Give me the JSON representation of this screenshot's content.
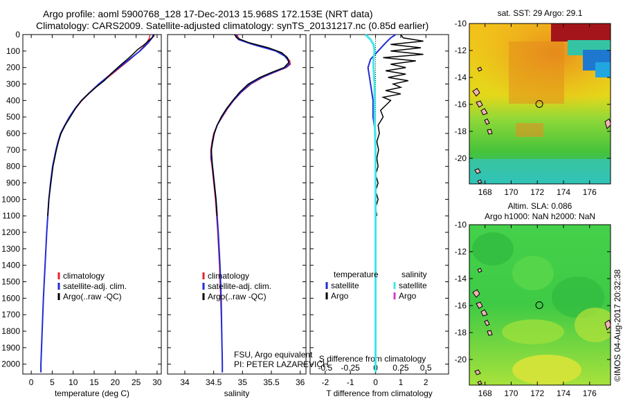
{
  "header": {
    "line1": "Argo profile: aoml 5900768_128 17-Dec-2013 15.968S 172.153E (NRT data)",
    "line2": "Climatology: CARS2009. Satellite-adjusted climatology: synTS_20131217.nc (0.85d earlier)"
  },
  "colors": {
    "climatology": "#e8202a",
    "satellite": "#1f2bd6",
    "argo": "#000000",
    "salinity_satellite": "#3fe6ea",
    "salinity_argo": "#d23cd2"
  },
  "chart_data": [
    {
      "type": "line",
      "xlabel": "temperature (deg C)",
      "xlim": [
        -2,
        31
      ],
      "xticks": [
        0,
        5,
        10,
        15,
        20,
        25,
        30
      ],
      "ylim": [
        2060,
        0
      ],
      "yticks": [
        0,
        100,
        200,
        300,
        400,
        500,
        600,
        700,
        800,
        900,
        1000,
        1100,
        1200,
        1300,
        1400,
        1500,
        1600,
        1700,
        1800,
        1900,
        2000
      ],
      "legend": [
        "climatology",
        "satellite-adj. clim.",
        "Argo(..raw -QC)"
      ],
      "series": [
        {
          "name": "climatology",
          "y": [
            0,
            20,
            50,
            75,
            100,
            150,
            200,
            250,
            300,
            350,
            400,
            450,
            500,
            550,
            600,
            650,
            700,
            800,
            900,
            1000,
            1200,
            1400,
            1600,
            1800,
            2000,
            2050
          ],
          "values": [
            28.3,
            28.2,
            27.5,
            26.7,
            25.8,
            23.6,
            21.2,
            18.8,
            16.3,
            14.1,
            12.1,
            10.5,
            9.2,
            8.0,
            7.0,
            6.4,
            5.9,
            5.1,
            4.6,
            4.2,
            3.7,
            3.3,
            2.9,
            2.6,
            2.3,
            2.3
          ]
        },
        {
          "name": "satellite-adj. clim.",
          "y": [
            0,
            20,
            50,
            75,
            100,
            150,
            200,
            250,
            300,
            350,
            400,
            450,
            500,
            550,
            600,
            650,
            700,
            800,
            900,
            1000,
            1200,
            1400,
            1600,
            1800,
            2000,
            2050
          ],
          "values": [
            29.1,
            28.8,
            27.9,
            26.9,
            25.9,
            23.4,
            20.9,
            18.5,
            16.1,
            14.0,
            12.0,
            10.4,
            9.1,
            8.0,
            7.0,
            6.4,
            5.9,
            5.1,
            4.6,
            4.2,
            3.7,
            3.3,
            2.9,
            2.6,
            2.3,
            2.3
          ]
        },
        {
          "name": "Argo(..raw -QC)",
          "y": [
            0,
            10,
            30,
            60,
            90,
            120,
            150,
            180,
            210,
            240,
            280,
            320,
            360,
            400,
            450,
            500,
            550,
            600,
            650,
            700,
            800,
            900,
            1000,
            1100
          ],
          "values": [
            29.3,
            29.2,
            28.3,
            27.0,
            25.4,
            24.2,
            22.9,
            21.5,
            20.2,
            18.9,
            17.4,
            15.4,
            13.6,
            12.0,
            10.5,
            9.3,
            8.1,
            7.1,
            6.5,
            6.0,
            5.2,
            4.7,
            4.2,
            3.9
          ]
        }
      ]
    },
    {
      "type": "line",
      "xlabel": "salinity",
      "xlim": [
        33.7,
        36.1
      ],
      "xticks": [
        34,
        34.5,
        35,
        35.5,
        36
      ],
      "ylim": [
        2060,
        0
      ],
      "legend": [
        "climatology",
        "satellite-adj. clim.",
        "Argo(..raw -QC)"
      ],
      "series": [
        {
          "name": "climatology",
          "y": [
            0,
            30,
            60,
            100,
            130,
            160,
            180,
            200,
            230,
            260,
            300,
            350,
            400,
            450,
            500,
            550,
            600,
            650,
            700,
            750,
            800,
            900,
            1000,
            1200,
            1400,
            1600,
            1800,
            2000,
            2050
          ],
          "values": [
            34.9,
            34.95,
            35.2,
            35.6,
            35.75,
            35.82,
            35.83,
            35.76,
            35.55,
            35.35,
            35.15,
            34.98,
            34.85,
            34.74,
            34.65,
            34.56,
            34.5,
            34.47,
            34.45,
            34.45,
            34.47,
            34.5,
            34.53,
            34.57,
            34.6,
            34.62,
            34.64,
            34.65,
            34.65
          ]
        },
        {
          "name": "satellite-adj. clim.",
          "y": [
            0,
            30,
            60,
            100,
            130,
            160,
            180,
            200,
            230,
            260,
            300,
            350,
            400,
            450,
            500,
            550,
            600,
            650,
            700,
            750,
            800,
            900,
            1000,
            1200,
            1400,
            1600,
            1800,
            2000,
            2050
          ],
          "values": [
            34.88,
            34.93,
            35.18,
            35.58,
            35.73,
            35.8,
            35.81,
            35.74,
            35.53,
            35.33,
            35.13,
            34.97,
            34.84,
            34.73,
            34.64,
            34.56,
            34.51,
            34.48,
            34.46,
            34.46,
            34.48,
            34.51,
            34.54,
            34.58,
            34.61,
            34.63,
            34.64,
            34.65,
            34.65
          ]
        },
        {
          "name": "Argo(..raw -QC)",
          "y": [
            0,
            20,
            50,
            80,
            110,
            140,
            170,
            200,
            230,
            260,
            300,
            350,
            400,
            450,
            500,
            550,
            600,
            700,
            800,
            900,
            1000,
            1100
          ],
          "values": [
            34.86,
            34.9,
            35.12,
            35.45,
            35.68,
            35.78,
            35.8,
            35.72,
            35.5,
            35.3,
            35.1,
            34.95,
            34.83,
            34.72,
            34.63,
            34.56,
            34.51,
            34.46,
            34.48,
            34.51,
            34.54,
            34.56
          ]
        }
      ]
    },
    {
      "type": "line",
      "xlabel": "T difference from climatology",
      "xlabel_top": "S difference from climatology",
      "xlim": [
        -2.6,
        2.9
      ],
      "xticks": [
        -2,
        -1,
        0,
        1,
        2
      ],
      "xticks_top": [
        -0.5,
        -0.25,
        0,
        0.25,
        0.5
      ],
      "ylim": [
        2060,
        0
      ],
      "legend_groups": [
        {
          "title": "temperature",
          "items": [
            "satellite",
            "Argo"
          ]
        },
        {
          "title": "salinity",
          "items": [
            "satellite",
            "Argo"
          ]
        }
      ],
      "series": [
        {
          "name": "temperature satellite",
          "y": [
            0,
            20,
            50,
            100,
            150,
            200,
            300,
            400,
            500,
            600,
            700,
            800,
            1000,
            1200,
            1500,
            2000,
            2050
          ],
          "values": [
            0.8,
            0.6,
            0.4,
            0.1,
            -0.2,
            -0.3,
            -0.2,
            -0.1,
            -0.1,
            0,
            0,
            0,
            0,
            0,
            0,
            0,
            0
          ]
        },
        {
          "name": "temperature Argo",
          "y": [
            0,
            20,
            40,
            60,
            80,
            100,
            120,
            140,
            160,
            180,
            200,
            220,
            240,
            260,
            280,
            300,
            320,
            340,
            360,
            380,
            400,
            430,
            460,
            500,
            550,
            600,
            650,
            700,
            750,
            800,
            850,
            900,
            950,
            1000,
            1050,
            1100
          ],
          "values": [
            1.0,
            1.1,
            1.9,
            0.6,
            1.8,
            0.6,
            1.9,
            0.3,
            1.6,
            0.6,
            1.2,
            0.4,
            1.2,
            0.5,
            1.3,
            0.7,
            1.0,
            0.4,
            1.0,
            0.3,
            0.6,
            0.4,
            0.2,
            0.3,
            0.1,
            0.15,
            0.05,
            0.12,
            0.05,
            0.1,
            0.0,
            0.1,
            0.0,
            0.1,
            0.0,
            0.05
          ]
        },
        {
          "name": "salinity satellite",
          "y": [
            0,
            30,
            60,
            100,
            150,
            200,
            300,
            400,
            500,
            700,
            1000,
            1500,
            2000,
            2050
          ],
          "values": [
            -0.1,
            -0.05,
            -0.02,
            -0.01,
            -0.02,
            -0.02,
            -0.01,
            -0.01,
            -0.01,
            0,
            0,
            0,
            0,
            0
          ]
        }
      ]
    }
  ],
  "maps": {
    "sst": {
      "title": "sat. SST: 29 Argo: 29.1",
      "xticks": [
        168,
        170,
        172,
        174,
        176
      ],
      "yticks": [
        -10,
        -12,
        -14,
        -16,
        -18,
        -20
      ]
    },
    "sla": {
      "title_line1": "Altim. SLA: 0.086",
      "title_line2": "Argo h1000: NaN h2000: NaN",
      "xticks": [
        168,
        170,
        172,
        174,
        176
      ],
      "yticks": [
        -10,
        -12,
        -14,
        -16,
        -18,
        -20
      ]
    }
  },
  "credit": {
    "line1": "FSU, Argo equivalent",
    "line2": "PI: PETER LAZAREVICH"
  },
  "side_stamp": "©IMOS 04-Aug-2017 20:32:38"
}
